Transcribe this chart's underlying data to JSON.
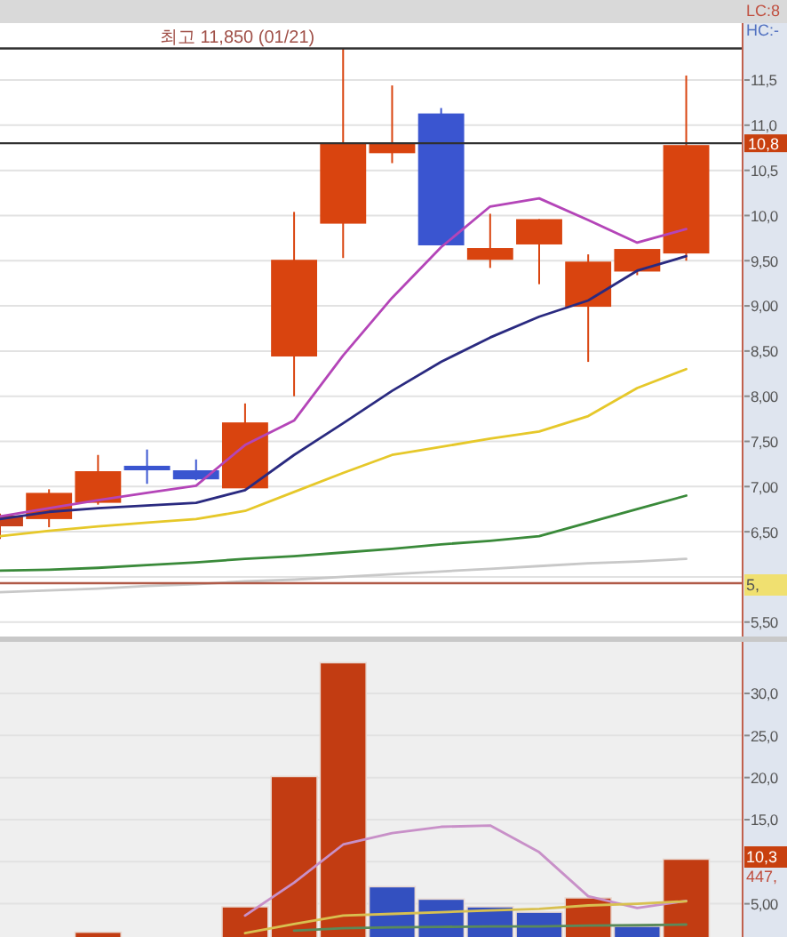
{
  "chart_data": [
    {
      "type": "candlestick",
      "categories": [
        null,
        null,
        null,
        null,
        null,
        null,
        null,
        null,
        null,
        null,
        null,
        null,
        null,
        null,
        null
      ],
      "ohlc": [
        [
          6.56,
          6.7,
          6.42,
          6.68
        ],
        [
          6.64,
          6.97,
          6.55,
          6.93
        ],
        [
          6.82,
          7.35,
          6.8,
          7.17
        ],
        [
          7.23,
          7.41,
          7.03,
          7.18
        ],
        [
          7.18,
          7.3,
          7.07,
          7.08
        ],
        [
          6.98,
          7.92,
          6.98,
          7.71
        ],
        [
          8.44,
          10.04,
          8.0,
          9.51
        ],
        [
          9.91,
          11.85,
          9.53,
          10.8
        ],
        [
          10.69,
          11.44,
          10.58,
          10.8
        ],
        [
          11.13,
          11.19,
          9.67,
          9.67
        ],
        [
          9.51,
          10.02,
          9.42,
          9.64
        ],
        [
          9.68,
          9.96,
          9.24,
          9.96
        ],
        [
          8.99,
          9.57,
          8.38,
          9.49
        ],
        [
          9.38,
          9.63,
          9.34,
          9.63
        ],
        [
          9.58,
          11.55,
          9.5,
          10.78
        ]
      ],
      "colors": [
        "#c8401a",
        "#d9440f",
        "#d9440f",
        "#3a55d0",
        "#3a55d0",
        "#d9440f",
        "#d9440f",
        "#d9440f",
        "#d9440f",
        "#3a55d0",
        "#d9440f",
        "#d9440f",
        "#d9440f",
        "#d9440f",
        "#d9440f"
      ],
      "ylim": [
        5.34,
        12.13
      ],
      "yticks": [
        {
          "value": 5.5,
          "label": "5,50"
        },
        {
          "value": 6,
          "label": null
        },
        {
          "value": 6.5,
          "label": "6,50"
        },
        {
          "value": 7,
          "label": "7,00"
        },
        {
          "value": 7.5,
          "label": "7,50"
        },
        {
          "value": 8,
          "label": "8,00"
        },
        {
          "value": 8.5,
          "label": "8,50"
        },
        {
          "value": 9,
          "label": "9,00"
        },
        {
          "value": 9.5,
          "label": "9,50"
        },
        {
          "value": 10,
          "label": "10,0"
        },
        {
          "value": 10.5,
          "label": "10,5"
        },
        {
          "value": 11,
          "label": "11,0"
        },
        {
          "value": 11.5,
          "label": "11,5"
        }
      ],
      "grid": "y",
      "tick_labels": "y",
      "series": [
        {
          "type": "line",
          "color": "#b445b8",
          "values": [
            6.67,
            6.76,
            6.85,
            6.93,
            7.01,
            7.46,
            7.73,
            8.45,
            9.09,
            9.65,
            10.1,
            10.19,
            9.95,
            9.7,
            9.85
          ]
        },
        {
          "type": "line",
          "color": "#2a2a80",
          "values": [
            6.64,
            6.72,
            6.76,
            6.79,
            6.82,
            6.96,
            7.35,
            7.7,
            8.06,
            8.38,
            8.65,
            8.88,
            9.06,
            9.39,
            9.55
          ]
        },
        {
          "type": "line",
          "color": "#e6c82a",
          "values": [
            6.45,
            6.51,
            6.56,
            6.6,
            6.64,
            6.73,
            6.94,
            7.15,
            7.35,
            7.44,
            7.53,
            7.61,
            7.78,
            8.09,
            8.3
          ]
        },
        {
          "type": "line",
          "color": "#3a8a3a",
          "values": [
            6.07,
            6.08,
            6.1,
            6.13,
            6.16,
            6.2,
            6.23,
            6.27,
            6.31,
            6.36,
            6.4,
            6.45,
            6.6,
            6.75,
            6.9
          ]
        },
        {
          "type": "line",
          "color": "#c8c8c8",
          "values": [
            5.83,
            5.85,
            5.87,
            5.9,
            5.92,
            5.95,
            5.97,
            6.0,
            6.03,
            6.06,
            6.09,
            6.12,
            6.15,
            6.17,
            6.2
          ]
        }
      ],
      "ref_lines": [
        {
          "axis": "y",
          "value": 11.85,
          "label": "최고 11,850 (01/21)",
          "color": "#303030"
        },
        {
          "axis": "y",
          "value": 10.8,
          "label": "10,8",
          "color": "#303030"
        },
        {
          "axis": "y",
          "value": 5.93,
          "color": "#b05a48"
        }
      ],
      "annotations": [
        "LC:8",
        "HC:-",
        "5,"
      ]
    },
    {
      "type": "bar",
      "categories": [
        null,
        null,
        null,
        null,
        null,
        null,
        null,
        null,
        null,
        null,
        null,
        null,
        null,
        null,
        null
      ],
      "values": [
        null,
        null,
        1.62,
        null,
        null,
        4.64,
        20.13,
        33.65,
        7.03,
        5.55,
        4.64,
        4.0,
        5.7,
        2.32,
        10.3
      ],
      "colors": [
        "#c23c12",
        "#c23c12",
        "#c23c12",
        "#3350c0",
        "#3350c0",
        "#c23c12",
        "#c23c12",
        "#c23c12",
        "#3350c0",
        "#3350c0",
        "#3350c0",
        "#3350c0",
        "#c23c12",
        "#3350c0",
        "#c23c12"
      ],
      "ylim": [
        1.05,
        36.13
      ],
      "yticks": [
        {
          "value": 5,
          "label": "5,00"
        },
        {
          "value": 10,
          "label": null
        },
        {
          "value": 15,
          "label": "15,0"
        },
        {
          "value": 20,
          "label": "20,0"
        },
        {
          "value": 25,
          "label": "25,0"
        },
        {
          "value": 30,
          "label": "30,0"
        }
      ],
      "grid": "y",
      "tick_labels": "y",
      "series": [
        {
          "type": "line",
          "color": "#c890c8",
          "values": [
            null,
            null,
            null,
            null,
            null,
            3.6,
            7.5,
            12.04,
            13.4,
            14.15,
            14.3,
            11.13,
            5.9,
            4.5,
            5.34
          ]
        },
        {
          "type": "line",
          "color": "#d8c050",
          "values": [
            null,
            null,
            null,
            null,
            null,
            1.5,
            2.6,
            3.6,
            3.8,
            4.0,
            4.2,
            4.4,
            4.8,
            5.0,
            5.3
          ]
        },
        {
          "type": "line",
          "color": "#5a8a5a",
          "values": [
            null,
            null,
            null,
            null,
            null,
            null,
            1.8,
            2.1,
            2.2,
            2.25,
            2.3,
            2.3,
            2.4,
            2.45,
            2.53
          ]
        }
      ],
      "annotations": [
        "10,3",
        "447,"
      ]
    }
  ]
}
